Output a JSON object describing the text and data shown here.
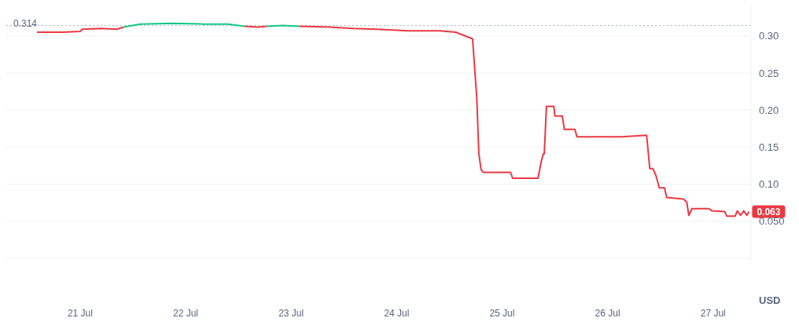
{
  "chart_data": {
    "type": "line",
    "ylabel": "USD",
    "xlim": [
      "--07-20T07:12",
      "--07-27T08:38"
    ],
    "xticks": [
      {
        "value": "--07-21",
        "label": "21 Jul"
      },
      {
        "value": "--07-22",
        "label": "22 Jul"
      },
      {
        "value": "--07-23",
        "label": "23 Jul"
      },
      {
        "value": "--07-24",
        "label": "24 Jul"
      },
      {
        "value": "--07-25",
        "label": "25 Jul"
      },
      {
        "value": "--07-26",
        "label": "26 Jul"
      },
      {
        "value": "--07-27",
        "label": "27 Jul"
      }
    ],
    "ylim": [
      0,
      0.34
    ],
    "yticks": [
      {
        "value": 0,
        "label": null
      },
      {
        "value": 0.05,
        "label": "0.050"
      },
      {
        "value": 0.1,
        "label": "0.10"
      },
      {
        "value": 0.15,
        "label": "0.15"
      },
      {
        "value": 0.2,
        "label": "0.20"
      },
      {
        "value": 0.25,
        "label": "0.25"
      },
      {
        "value": 0.3,
        "label": "0.30"
      }
    ],
    "grid": "y",
    "marker": "none",
    "line_style": "solid",
    "series": [
      {
        "color": "#ea3943",
        "x": [
          "--07-20T14:10",
          "--07-20T19:55",
          "--07-21T00:00",
          "--07-21T00:29",
          "--07-21T04:48",
          "--07-21T08:24",
          "--07-21T09:50",
          "--07-21T12:00",
          "--07-22T13:26",
          "--07-22T16:34",
          "--07-22T18:29",
          "--07-22T21:36",
          "--07-23T01:55",
          "--07-23T08:53",
          "--07-23T14:10",
          "--07-23T19:26",
          "--07-24T02:38",
          "--07-24T09:50",
          "--07-24T13:26",
          "--07-24T16:05",
          "--07-24T17:17",
          "--07-24T18:14",
          "--07-24T18:43",
          "--07-24T19:12",
          "--07-24T19:41",
          "--07-25T01:55",
          "--07-25T02:24",
          "--07-25T08:10",
          "--07-25T08:53",
          "--07-25T09:22",
          "--07-25T09:36",
          "--07-25T10:05",
          "--07-25T11:46",
          "--07-25T12:00",
          "--07-25T13:41",
          "--07-25T14:10",
          "--07-25T16:34",
          "--07-25T17:02",
          "--07-26T03:07",
          "--07-26T08:53",
          "--07-26T09:36",
          "--07-26T10:19",
          "--07-26T11:02",
          "--07-26T11:46",
          "--07-26T12:58",
          "--07-26T13:26",
          "--07-26T17:17",
          "--07-26T18:00",
          "--07-26T18:29",
          "--07-26T19:12",
          "--07-26T23:02",
          "--07-26T23:46",
          "--07-27T02:38",
          "--07-27T03:07",
          "--07-27T05:02",
          "--07-27T05:31",
          "--07-27T06:14",
          "--07-27T06:58",
          "--07-27T07:41",
          "--07-27T08:10"
        ],
        "values": [
          0.305,
          0.305,
          0.306,
          0.309,
          0.31,
          0.309,
          0.312,
          null,
          0.313,
          0.312,
          0.313,
          null,
          0.313,
          0.312,
          0.31,
          0.309,
          0.307,
          0.307,
          0.305,
          0.299,
          0.296,
          0.217,
          0.141,
          0.12,
          0.116,
          0.116,
          0.108,
          0.108,
          0.13,
          0.141,
          0.141,
          0.205,
          0.205,
          0.192,
          0.192,
          0.174,
          0.174,
          0.164,
          0.164,
          0.166,
          0.121,
          0.121,
          0.111,
          0.095,
          0.095,
          0.082,
          0.08,
          0.076,
          0.058,
          0.067,
          0.067,
          0.064,
          0.063,
          0.057,
          0.057,
          0.064,
          0.058,
          0.064,
          0.058,
          0.063
        ]
      },
      {
        "color": "#16c784",
        "x": [
          "--07-21T09:50",
          "--07-21T13:41",
          "--07-21T20:53",
          "--07-22T04:05",
          "--07-22T09:36",
          "--07-22T13:26"
        ],
        "values": [
          0.312,
          0.316,
          0.317,
          0.316,
          0.316,
          0.313
        ]
      },
      {
        "color": "#16c784",
        "x": [
          "--07-22T18:29",
          "--07-22T22:05",
          "--07-23T01:55"
        ],
        "values": [
          0.313,
          0.314,
          0.313
        ]
      }
    ],
    "ref_lines": [
      {
        "axis": "y",
        "value": 0.314,
        "label": "0.314",
        "color": "#a6b0c3",
        "line_style": "dotted"
      }
    ],
    "annotations": [
      {
        "text": "0.063",
        "x": "--07-27T08:10",
        "y": 0.063
      }
    ]
  }
}
